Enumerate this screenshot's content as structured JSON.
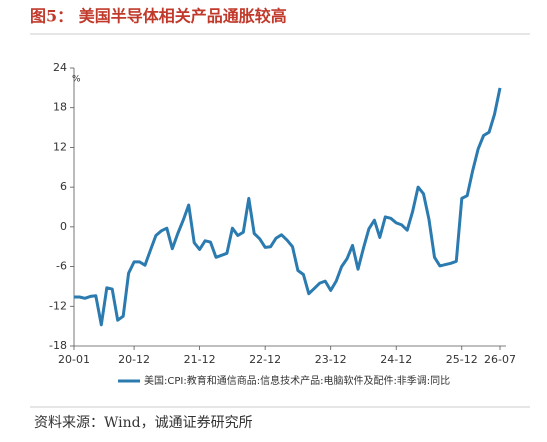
{
  "title": "图5：  美国半导体相关产品通胀较高",
  "source": "资料来源：Wind，诚通证券研究所",
  "chart_data": {
    "type": "line",
    "y_label": "%",
    "categories": [
      "20-01",
      null,
      null,
      null,
      null,
      null,
      null,
      null,
      null,
      null,
      null,
      "20-12",
      null,
      null,
      null,
      null,
      null,
      null,
      null,
      null,
      null,
      null,
      null,
      "21-12",
      null,
      null,
      null,
      null,
      null,
      null,
      null,
      null,
      null,
      null,
      null,
      "22-12",
      null,
      null,
      null,
      null,
      null,
      null,
      null,
      null,
      null,
      null,
      null,
      "23-12",
      null,
      null,
      null,
      null,
      null,
      null,
      null,
      null,
      null,
      null,
      null,
      "24-12",
      null,
      null,
      null,
      null,
      null,
      null,
      null,
      null,
      null,
      null,
      null,
      "25-12",
      null,
      null,
      null,
      null,
      null,
      null,
      "26-07"
    ],
    "series": [
      {
        "name": "美国:CPI:教育和通信商品:信息技术产品:电脑软件及配件:非季调:同比",
        "color": "#2b7bb0",
        "values": [
          -10.6,
          -10.6,
          -10.8,
          -10.5,
          -10.4,
          -14.8,
          -9.2,
          -9.4,
          -14.1,
          -13.5,
          -7,
          -5.3,
          -5.3,
          -5.8,
          -3.5,
          -1.3,
          -0.6,
          -0.2,
          -3.3,
          -1,
          1,
          3.3,
          -2.4,
          -3.4,
          -2.1,
          -2.3,
          -4.6,
          -4.3,
          -4,
          -0.2,
          -1.3,
          -0.8,
          4.3,
          -1,
          -1.8,
          -3.1,
          -3,
          -1.7,
          -1.2,
          -2,
          -3,
          -6.6,
          -7.2,
          -10.1,
          -9.3,
          -8.5,
          -8.2,
          -9.6,
          -8.2,
          -6,
          -4.8,
          -2.8,
          -6.4,
          -3.2,
          -0.3,
          1,
          -1.6,
          1.5,
          1.3,
          0.6,
          0.3,
          -0.5,
          2.3,
          6,
          5,
          1.1,
          -4.6,
          -5.9,
          -5.7,
          -5.5,
          -5.2,
          4.3,
          4.7,
          8.5,
          11.8,
          13.8,
          14.3,
          17,
          21
        ]
      }
    ],
    "ylim": [
      -18,
      24
    ],
    "yticks": [
      -18,
      -12,
      -6,
      0,
      6,
      12,
      18,
      24
    ],
    "legend": "bottom"
  }
}
